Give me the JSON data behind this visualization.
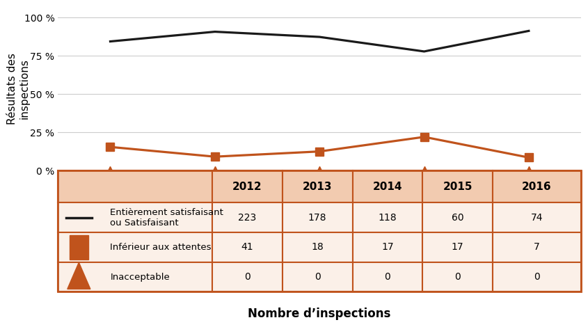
{
  "years": [
    2012,
    2013,
    2014,
    2015,
    2016
  ],
  "satisfaisant_pct": [
    84.47,
    90.82,
    87.41,
    77.92,
    91.36
  ],
  "inferieur_pct": [
    15.53,
    9.18,
    12.59,
    22.08,
    8.64
  ],
  "inacceptable_pct": [
    0.0,
    0.0,
    0.0,
    0.0,
    0.0
  ],
  "satisfaisant_counts": [
    223,
    178,
    118,
    60,
    74
  ],
  "inferieur_counts": [
    41,
    18,
    17,
    17,
    7
  ],
  "inacceptable_counts": [
    0,
    0,
    0,
    0,
    0
  ],
  "line_color_black": "#1a1a1a",
  "line_color_orange": "#C0531C",
  "table_header_bg": "#F2CBB0",
  "table_row_bg": "#FBF0E8",
  "table_border_color": "#C0531C",
  "ylabel": "Résultats des\ninspections",
  "xlabel": "Nombre d’inspections",
  "yticks": [
    0,
    25,
    50,
    75,
    100
  ],
  "ytick_labels": [
    "0 %",
    "25 %",
    "50 %",
    "75 %",
    "100 %"
  ],
  "bg_color": "#FFFFFF",
  "grid_color": "#CCCCCC",
  "legend_row1": "Entièrement satisfaisant\nou Satisfaisant",
  "legend_row2": "Inférieur aux attentes",
  "legend_row3": "Inacceptable"
}
